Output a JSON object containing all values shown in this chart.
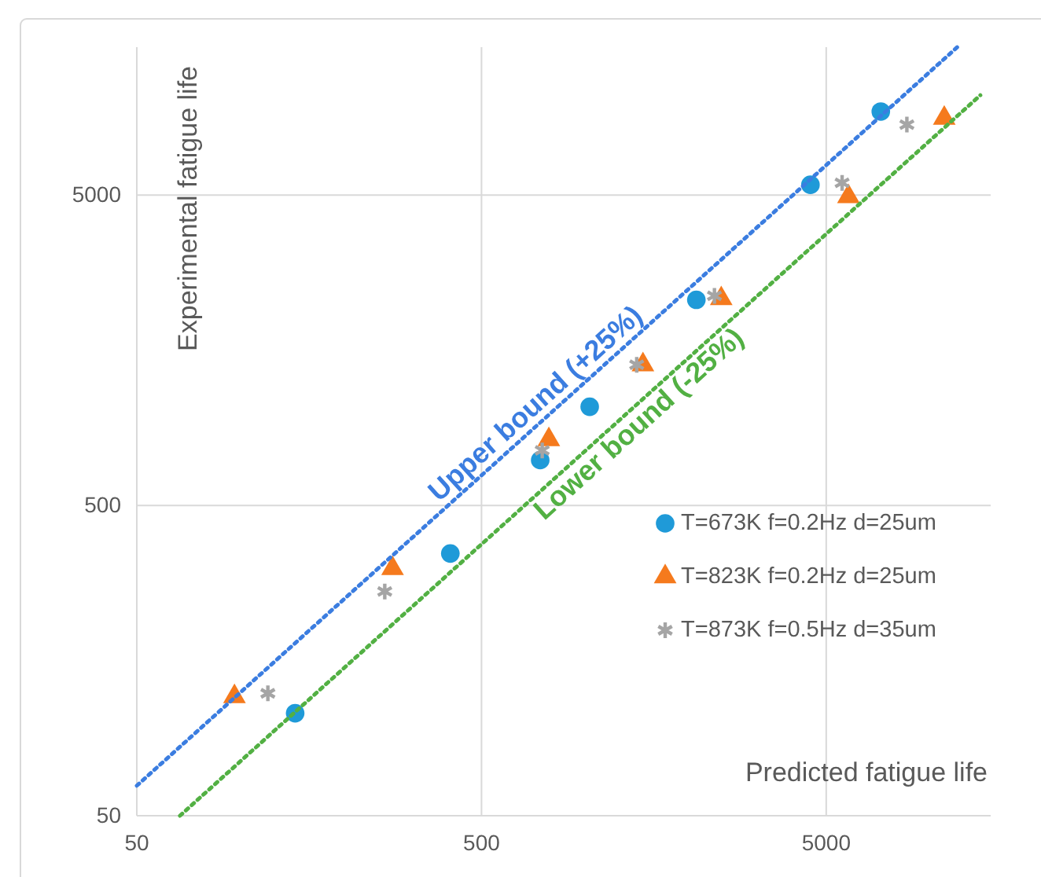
{
  "chart_data": {
    "type": "scatter",
    "xlabel": "Predicted fatigue life",
    "ylabel": "Experimental fatigue life",
    "xlim": [
      50,
      15000
    ],
    "ylim": [
      50,
      15000
    ],
    "xticks": [
      50,
      500,
      5000
    ],
    "yticks": [
      50,
      500,
      5000
    ],
    "log": "xy",
    "grid": true,
    "legend": "right",
    "series": [
      {
        "name": "T=673K f=0.2Hz d=25um",
        "color": "#1f9ad8",
        "marker": "circle",
        "x": [
          144,
          406,
          740,
          1030,
          2100,
          4500,
          7200
        ],
        "values": [
          107,
          350,
          700,
          1040,
          2300,
          5400,
          9300
        ]
      },
      {
        "name": "T=823K f=0.2Hz d=25um",
        "color": "#f57a1d",
        "marker": "triangle",
        "x": [
          96,
          276,
          784,
          1470,
          2480,
          5800,
          11000
        ],
        "values": [
          121,
          313,
          815,
          1420,
          2320,
          4950,
          8850
        ]
      },
      {
        "name": "T=873K f=0.5Hz d=35um",
        "color": "#a5a5a5",
        "marker": "cross",
        "x": [
          120,
          262,
          750,
          1410,
          2370,
          5560,
          8570
        ],
        "values": [
          124,
          264,
          752,
          1420,
          2370,
          5480,
          8440
        ]
      },
      {
        "name": "Upper bound (+25%)",
        "type": "line",
        "color": "#3b7de0",
        "marker": "none",
        "line_style": "dotted",
        "x": [
          50,
          12000
        ],
        "values": [
          62.5,
          15000
        ]
      },
      {
        "name": "Lower bound (-25%)",
        "type": "line",
        "color": "#52b043",
        "marker": "none",
        "line_style": "dotted",
        "x": [
          66.7,
          14000
        ],
        "values": [
          50,
          10500
        ]
      }
    ]
  }
}
